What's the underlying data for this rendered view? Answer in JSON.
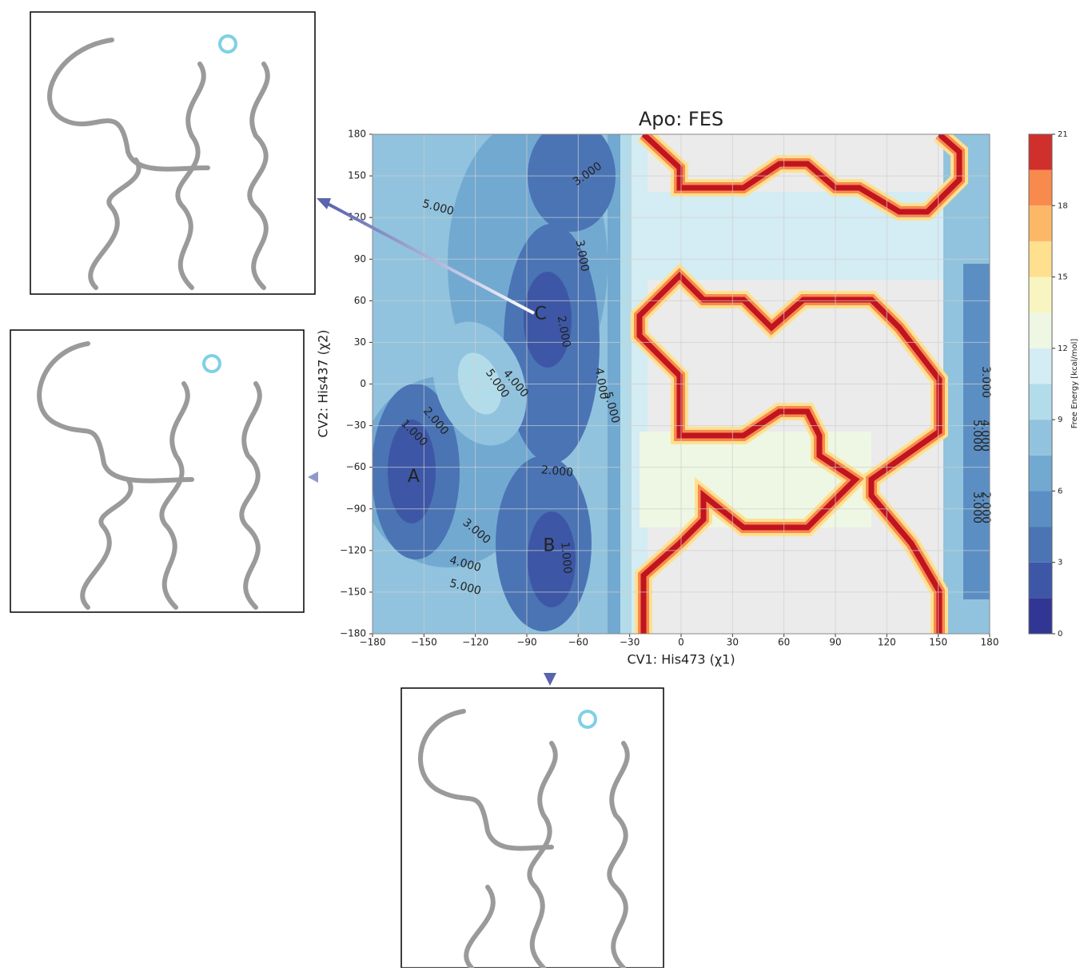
{
  "chart_data": {
    "type": "contour",
    "title": "Apo: FES",
    "xlabel": "CV1: His473 (χ1)",
    "ylabel": "CV2: His437 (χ2)",
    "xlim": [
      -180,
      180
    ],
    "ylim": [
      -180,
      180
    ],
    "xticks": [
      {
        "value": -180,
        "label": "−180"
      },
      {
        "value": -150,
        "label": "−150"
      },
      {
        "value": -120,
        "label": "−120"
      },
      {
        "value": -90,
        "label": "−90"
      },
      {
        "value": -60,
        "label": "−60"
      },
      {
        "value": -30,
        "label": "−30"
      },
      0,
      30,
      60,
      90,
      120,
      150,
      180
    ],
    "yticks": [
      {
        "value": -180,
        "label": "−180"
      },
      {
        "value": -150,
        "label": "−150"
      },
      {
        "value": -120,
        "label": "−120"
      },
      {
        "value": -90,
        "label": "−90"
      },
      {
        "value": -60,
        "label": "−60"
      },
      {
        "value": -30,
        "label": "−30"
      },
      0,
      30,
      60,
      90,
      120,
      150,
      180
    ],
    "grid": true,
    "colorbar": {
      "label": "Free Energy [kcal/mol]",
      "lim": [
        0,
        21
      ],
      "ticks": [
        0,
        3,
        6,
        9,
        12,
        15,
        18,
        21
      ],
      "levels": [
        0,
        1.5,
        3,
        4.5,
        6,
        7.5,
        9,
        10.5,
        12,
        13.5,
        15,
        16.5,
        18,
        19.5,
        21
      ],
      "colors": [
        "#313695",
        "#3d57a6",
        "#4a74b4",
        "#5b8fc3",
        "#72a9d1",
        "#91c3de",
        "#b3dcea",
        "#d4ecf3",
        "#eef7e4",
        "#f9f5c0",
        "#fee08f",
        "#fdb867",
        "#f88a4e",
        "#d0302b"
      ]
    },
    "contour_labels": [
      {
        "value": 3,
        "label": "3.000"
      },
      {
        "value": 5,
        "label": "5.000"
      },
      {
        "value": 3,
        "label": "3.000"
      },
      {
        "value": 2,
        "label": "2.000"
      },
      {
        "value": 4,
        "label": "4.000"
      },
      {
        "value": 5,
        "label": "5.000"
      },
      {
        "value": 4,
        "label": "4.000"
      },
      {
        "value": 5,
        "label": "5.000"
      },
      {
        "value": 2,
        "label": "2.000"
      },
      {
        "value": 1,
        "label": "1.000"
      },
      {
        "value": 2,
        "label": "2.000"
      },
      {
        "value": 3,
        "label": "3.000"
      },
      {
        "value": 1,
        "label": "1.000"
      },
      {
        "value": 4,
        "label": "4.000"
      },
      {
        "value": 5,
        "label": "5.000"
      },
      {
        "value": 3,
        "label": "3.000"
      },
      {
        "value": 5,
        "label": "5.000"
      },
      {
        "value": 4,
        "label": "4.000"
      },
      {
        "value": 3,
        "label": "3.000"
      },
      {
        "value": 2,
        "label": "2.000"
      }
    ],
    "points": [
      {
        "label": "A",
        "x": -156,
        "y": -67
      },
      {
        "label": "B",
        "x": -77,
        "y": -117
      },
      {
        "label": "C",
        "x": -82,
        "y": 50
      }
    ]
  }
}
